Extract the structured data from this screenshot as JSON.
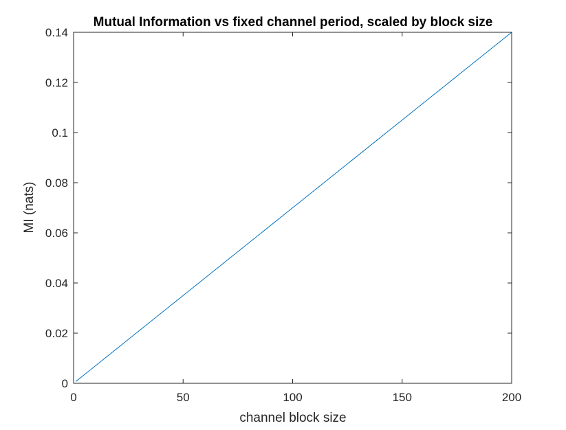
{
  "chart_data": {
    "type": "line",
    "title": "Mutual Information vs fixed channel period, scaled by block size",
    "xlabel": "channel block size",
    "ylabel": "MI (nats)",
    "xlim": [
      0,
      200
    ],
    "ylim": [
      0,
      0.14
    ],
    "xticks": [
      0,
      50,
      100,
      150,
      200
    ],
    "xtick_labels": [
      "0",
      "50",
      "100",
      "150",
      "200"
    ],
    "yticks": [
      0,
      0.02,
      0.04,
      0.06,
      0.08,
      0.1,
      0.12,
      0.14
    ],
    "ytick_labels": [
      "0",
      "0.02",
      "0.04",
      "0.06",
      "0.08",
      "0.1",
      "0.12",
      "0.14"
    ],
    "grid": false,
    "box": true,
    "series": [
      {
        "color": "#0072BD",
        "x": [
          1,
          25,
          50,
          75,
          100,
          125,
          150,
          175,
          200
        ],
        "y": [
          0.0007,
          0.0175,
          0.035,
          0.0525,
          0.07,
          0.0875,
          0.105,
          0.1225,
          0.14
        ]
      }
    ]
  }
}
